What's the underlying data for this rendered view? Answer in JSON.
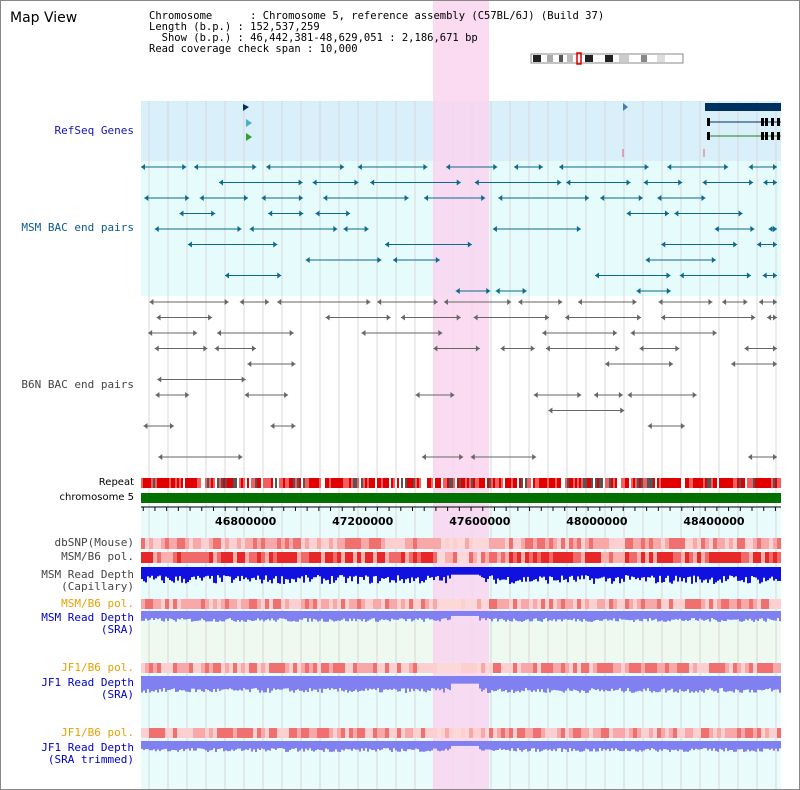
{
  "title": "Map View",
  "info": {
    "line1": "Chromosome      : Chromosome 5, reference assembly (C57BL/6J) (Build 37)",
    "line2": "Length (b.p.) : 152,537,259",
    "line3": "  Show (b.p.) : 46,442,381-48,629,051 : 2,186,671 bp",
    "line4": "Read coverage check span : 10,000"
  },
  "labels": {
    "refseq": "RefSeq Genes",
    "msm_bac": "MSM BAC end pairs",
    "b6n_bac": "B6N BAC end pairs",
    "repeat": "Repeat",
    "chromosome": "chromosome 5",
    "dbsnp": "dbSNP(Mouse)",
    "msm_b6_pol_1": "MSM/B6 pol.",
    "msm_depth_cap_1": "MSM Read Depth",
    "msm_depth_cap_2": "(Capillary)",
    "msm_b6_pol_2": "MSM/B6 pol.",
    "msm_depth_sra_1": "MSM Read Depth",
    "msm_depth_sra_2": "(SRA)",
    "jf1_b6_pol_1": "JF1/B6 pol.",
    "jf1_depth_sra_1": "JF1 Read Depth",
    "jf1_depth_sra_2": "(SRA)",
    "jf1_b6_pol_2": "JF1/B6 pol.",
    "jf1_depth_trim_1": "JF1 Read Depth",
    "jf1_depth_trim_2": "(SRA trimmed)"
  },
  "axis": {
    "ticks": [
      "46800000",
      "47200000",
      "47600000",
      "48000000",
      "48400000"
    ],
    "view_start": 46442381,
    "view_end": 48629051
  },
  "colors": {
    "refseq_bg": "#d9effa",
    "bac_bg": "#e6fbfb",
    "highlight": "#f9d5f0",
    "msm_bac": "#0d6a8c",
    "b6n_bac": "#666666",
    "chromosome": "#007000",
    "depth_dark": "#1010e0",
    "depth_light": "#8080f0"
  }
}
